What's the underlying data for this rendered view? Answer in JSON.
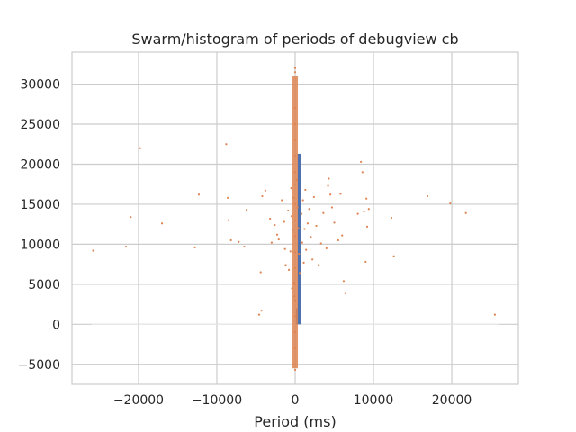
{
  "chart_data": {
    "type": "scatter",
    "title": "Swarm/histogram of periods of debugview cb",
    "xlabel": "Period (ms)",
    "ylabel": "",
    "xlim": [
      -28500,
      28500
    ],
    "ylim": [
      -7500,
      34000
    ],
    "grid": true,
    "xticks": [
      -20000,
      -10000,
      0,
      10000,
      20000
    ],
    "yticks": [
      -5000,
      0,
      5000,
      10000,
      15000,
      20000,
      25000,
      30000
    ],
    "xtick_labels": [
      "−20000",
      "−10000",
      "0",
      "10000",
      "20000"
    ],
    "ytick_labels": [
      "−5000",
      "0",
      "5000",
      "10000",
      "15000",
      "20000",
      "25000",
      "30000"
    ],
    "colors": {
      "histogram": "#4c72b0",
      "swarm": "#dd8452"
    },
    "series": [
      {
        "type": "bar",
        "bins": [
          {
            "x0": 100,
            "x1": 300,
            "count": 2000
          },
          {
            "x0": 300,
            "x1": 700,
            "count": 21300
          }
        ]
      },
      {
        "type": "scatter",
        "points": [
          [
            -25800,
            9200
          ],
          [
            -21000,
            13400
          ],
          [
            -21600,
            9700
          ],
          [
            -19800,
            22000
          ],
          [
            -17000,
            12600
          ],
          [
            -12300,
            16200
          ],
          [
            -12800,
            9600
          ],
          [
            -8800,
            22500
          ],
          [
            -8500,
            13000
          ],
          [
            -8600,
            15800
          ],
          [
            -8200,
            10500
          ],
          [
            -7200,
            10300
          ],
          [
            -6500,
            9700
          ],
          [
            -6200,
            14300
          ],
          [
            -4200,
            16000
          ],
          [
            -3800,
            16700
          ],
          [
            -3200,
            13200
          ],
          [
            -3000,
            10200
          ],
          [
            -4400,
            6500
          ],
          [
            -4300,
            1700
          ],
          [
            -4600,
            1200
          ],
          [
            -2600,
            12400
          ],
          [
            -2300,
            11200
          ],
          [
            -2100,
            10600
          ],
          [
            -1700,
            15500
          ],
          [
            -1400,
            12800
          ],
          [
            -1300,
            9400
          ],
          [
            -1200,
            7400
          ],
          [
            -900,
            14200
          ],
          [
            -800,
            6800
          ],
          [
            -600,
            9100
          ],
          [
            -500,
            17000
          ],
          [
            -450,
            13500
          ],
          [
            -400,
            4500
          ],
          [
            -300,
            11800
          ],
          [
            -200,
            15800
          ],
          [
            -150,
            5200
          ],
          [
            -100,
            3500
          ],
          [
            0,
            32000
          ],
          [
            0,
            31500
          ],
          [
            0,
            27000
          ],
          [
            0,
            25000
          ],
          [
            0,
            23000
          ],
          [
            0,
            21000
          ],
          [
            0,
            19000
          ],
          [
            0,
            17500
          ],
          [
            0,
            15000
          ],
          [
            0,
            13000
          ],
          [
            0,
            11000
          ],
          [
            0,
            9000
          ],
          [
            0,
            7000
          ],
          [
            0,
            5000
          ],
          [
            0,
            3000
          ],
          [
            0,
            1000
          ],
          [
            0,
            -1000
          ],
          [
            0,
            -3000
          ],
          [
            0,
            -5000
          ],
          [
            0,
            -5700
          ],
          [
            200,
            18000
          ],
          [
            300,
            14600
          ],
          [
            400,
            12000
          ],
          [
            500,
            8800
          ],
          [
            600,
            6400
          ],
          [
            800,
            13800
          ],
          [
            900,
            10200
          ],
          [
            1000,
            15500
          ],
          [
            1100,
            7700
          ],
          [
            1200,
            11900
          ],
          [
            1300,
            16800
          ],
          [
            1400,
            9300
          ],
          [
            1600,
            12600
          ],
          [
            1800,
            14400
          ],
          [
            2000,
            10900
          ],
          [
            2200,
            8100
          ],
          [
            2400,
            15900
          ],
          [
            2700,
            12300
          ],
          [
            3000,
            7400
          ],
          [
            3300,
            10100
          ],
          [
            3600,
            13900
          ],
          [
            4000,
            9500
          ],
          [
            4200,
            17300
          ],
          [
            4300,
            18200
          ],
          [
            4500,
            16200
          ],
          [
            4700,
            14600
          ],
          [
            5000,
            12700
          ],
          [
            5500,
            10500
          ],
          [
            5800,
            16300
          ],
          [
            6000,
            11100
          ],
          [
            6200,
            5400
          ],
          [
            6400,
            3900
          ],
          [
            8000,
            13800
          ],
          [
            8400,
            20300
          ],
          [
            8600,
            19000
          ],
          [
            8800,
            14100
          ],
          [
            9000,
            7800
          ],
          [
            9100,
            15700
          ],
          [
            9200,
            12200
          ],
          [
            9400,
            14400
          ],
          [
            12300,
            13300
          ],
          [
            12600,
            8500
          ],
          [
            16900,
            16000
          ],
          [
            19800,
            15100
          ],
          [
            21800,
            13900
          ],
          [
            25500,
            1200
          ]
        ]
      }
    ]
  }
}
